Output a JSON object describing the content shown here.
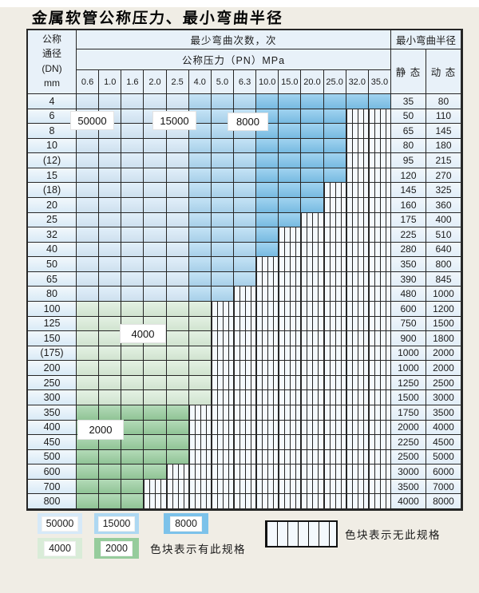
{
  "title": "金属软管公称压力、最小弯曲半径",
  "colors": {
    "page_bg": "#f0ede5",
    "table_header_bg": "#e8f1f9",
    "grid_line": "#262626",
    "cycles_50000": "#d6e9f8",
    "cycles_15000": "#aed8f2",
    "cycles_8000": "#7cc2ea",
    "cycles_4000": "#d9ecd8",
    "cycles_2000": "#96cc9c",
    "no_spec_bg": "#f4f9fd"
  },
  "table": {
    "corner": {
      "l1": "公称",
      "l2": "通径",
      "l3": "(DN)",
      "l4": "mm"
    },
    "bend_cycles_header": "最少弯曲次数，次",
    "pressure_header": "公称压力（PN）MPa",
    "radius_header": "最小弯曲半径",
    "static_header": "静 态",
    "dynamic_header": "动 态",
    "pressures": [
      "0.6",
      "1.0",
      "1.6",
      "2.0",
      "2.5",
      "4.0",
      "5.0",
      "6.3",
      "10.0",
      "15.0",
      "20.0",
      "25.0",
      "32.0",
      "35.0"
    ],
    "rows": [
      {
        "dn": "4",
        "colored_cols": 14,
        "cycles_palette": "blue",
        "static": "35",
        "dynamic": "80"
      },
      {
        "dn": "6",
        "colored_cols": 12,
        "cycles_palette": "blue",
        "static": "50",
        "dynamic": "110"
      },
      {
        "dn": "8",
        "colored_cols": 12,
        "cycles_palette": "blue",
        "static": "65",
        "dynamic": "145"
      },
      {
        "dn": "10",
        "colored_cols": 12,
        "cycles_palette": "blue",
        "static": "80",
        "dynamic": "180"
      },
      {
        "dn": "(12)",
        "colored_cols": 12,
        "cycles_palette": "blue",
        "static": "95",
        "dynamic": "215"
      },
      {
        "dn": "15",
        "colored_cols": 12,
        "cycles_palette": "blue",
        "static": "120",
        "dynamic": "270"
      },
      {
        "dn": "(18)",
        "colored_cols": 11,
        "cycles_palette": "blue",
        "static": "145",
        "dynamic": "325"
      },
      {
        "dn": "20",
        "colored_cols": 11,
        "cycles_palette": "blue",
        "static": "160",
        "dynamic": "360"
      },
      {
        "dn": "25",
        "colored_cols": 10,
        "cycles_palette": "blue",
        "static": "175",
        "dynamic": "400"
      },
      {
        "dn": "32",
        "colored_cols": 9,
        "cycles_palette": "blue",
        "static": "225",
        "dynamic": "510"
      },
      {
        "dn": "40",
        "colored_cols": 9,
        "cycles_palette": "blue",
        "static": "280",
        "dynamic": "640"
      },
      {
        "dn": "50",
        "colored_cols": 8,
        "cycles_palette": "blue",
        "static": "350",
        "dynamic": "800"
      },
      {
        "dn": "65",
        "colored_cols": 8,
        "cycles_palette": "blue",
        "static": "390",
        "dynamic": "845"
      },
      {
        "dn": "80",
        "colored_cols": 7,
        "cycles_palette": "blue",
        "static": "480",
        "dynamic": "1000"
      },
      {
        "dn": "100",
        "colored_cols": 6,
        "cycles_palette": "g4000",
        "static": "600",
        "dynamic": "1200"
      },
      {
        "dn": "125",
        "colored_cols": 6,
        "cycles_palette": "g4000",
        "static": "750",
        "dynamic": "1500"
      },
      {
        "dn": "150",
        "colored_cols": 6,
        "cycles_palette": "g4000",
        "static": "900",
        "dynamic": "1800"
      },
      {
        "dn": "(175)",
        "colored_cols": 6,
        "cycles_palette": "g4000",
        "static": "1000",
        "dynamic": "2000"
      },
      {
        "dn": "200",
        "colored_cols": 6,
        "cycles_palette": "g4000",
        "static": "1000",
        "dynamic": "2000"
      },
      {
        "dn": "250",
        "colored_cols": 6,
        "cycles_palette": "g4000",
        "static": "1250",
        "dynamic": "2500"
      },
      {
        "dn": "300",
        "colored_cols": 6,
        "cycles_palette": "g4000",
        "static": "1500",
        "dynamic": "3000"
      },
      {
        "dn": "350",
        "colored_cols": 5,
        "cycles_palette": "g2000",
        "static": "1750",
        "dynamic": "3500"
      },
      {
        "dn": "400",
        "colored_cols": 5,
        "cycles_palette": "g2000",
        "static": "2000",
        "dynamic": "4000"
      },
      {
        "dn": "450",
        "colored_cols": 5,
        "cycles_palette": "g2000",
        "static": "2250",
        "dynamic": "4500"
      },
      {
        "dn": "500",
        "colored_cols": 5,
        "cycles_palette": "g2000",
        "static": "2500",
        "dynamic": "5000"
      },
      {
        "dn": "600",
        "colored_cols": 4,
        "cycles_palette": "g2000",
        "static": "3000",
        "dynamic": "6000"
      },
      {
        "dn": "700",
        "colored_cols": 3,
        "cycles_palette": "g2000",
        "static": "3500",
        "dynamic": "7000"
      },
      {
        "dn": "800",
        "colored_cols": 3,
        "cycles_palette": "g2000",
        "static": "4000",
        "dynamic": "8000"
      }
    ]
  },
  "overlays": [
    {
      "text": "50000"
    },
    {
      "text": "15000"
    },
    {
      "text": "8000"
    },
    {
      "text": "4000"
    },
    {
      "text": "2000"
    }
  ],
  "legend": {
    "items": [
      {
        "label": "50000",
        "color": "#d6e9f8"
      },
      {
        "label": "15000",
        "color": "#aed8f2"
      },
      {
        "label": "8000",
        "color": "#7cc2ea"
      },
      {
        "label": "4000",
        "color": "#d9ecd8"
      },
      {
        "label": "2000",
        "color": "#96cc9c"
      }
    ],
    "has_spec_text": "色块表示有此规格",
    "no_spec_text": "色块表示无此规格"
  }
}
